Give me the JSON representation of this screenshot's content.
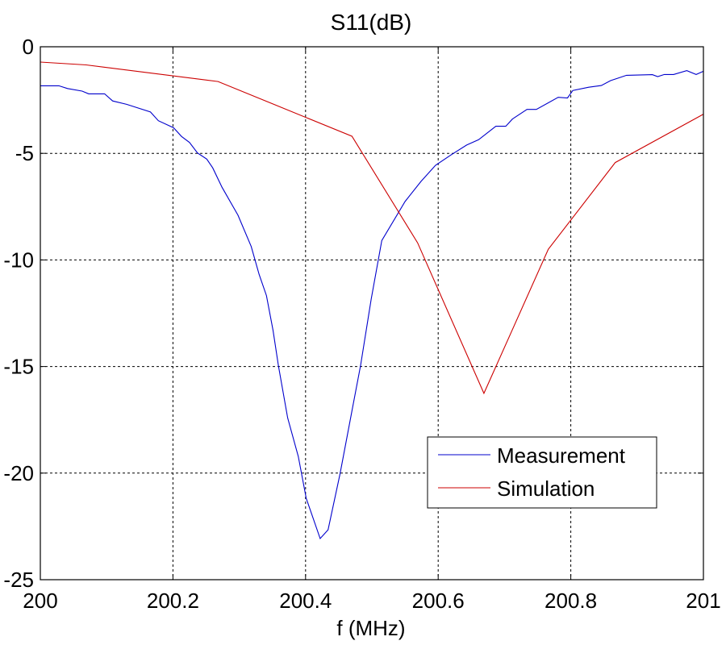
{
  "chart_data": {
    "type": "line",
    "title": "S11(dB)",
    "xlabel": "f (MHz)",
    "ylabel": "",
    "xlim": [
      200,
      201
    ],
    "ylim": [
      -25,
      0
    ],
    "xticks": [
      200,
      200.2,
      200.4,
      200.6,
      200.8,
      201
    ],
    "xtick_labels": [
      "200",
      "200.2",
      "200.4",
      "200.6",
      "200.8",
      "201"
    ],
    "yticks": [
      0,
      -5,
      -10,
      -15,
      -20,
      -25
    ],
    "ytick_labels": [
      "0",
      "-5",
      "-10",
      "-15",
      "-20",
      "-25"
    ],
    "grid": true,
    "legend_position": "lower-right",
    "series": [
      {
        "name": "Measurement",
        "color": "#0000cc",
        "x": [
          200.0,
          200.028,
          200.041,
          200.063,
          200.073,
          200.097,
          200.109,
          200.13,
          200.166,
          200.178,
          200.201,
          200.213,
          200.225,
          200.237,
          200.251,
          200.26,
          200.274,
          200.298,
          200.318,
          200.33,
          200.341,
          200.351,
          200.359,
          200.373,
          200.389,
          200.401,
          200.422,
          200.434,
          200.452,
          200.47,
          200.483,
          200.499,
          200.515,
          200.55,
          200.574,
          200.596,
          200.62,
          200.643,
          200.661,
          200.687,
          200.702,
          200.712,
          200.734,
          200.748,
          200.781,
          200.795,
          200.803,
          200.827,
          200.846,
          200.86,
          200.884,
          200.923,
          200.931,
          200.941,
          200.955,
          200.975,
          200.989,
          201.0
        ],
        "y": [
          -1.83,
          -1.83,
          -1.96,
          -2.08,
          -2.21,
          -2.21,
          -2.54,
          -2.7,
          -3.06,
          -3.47,
          -3.8,
          -4.21,
          -4.49,
          -4.98,
          -5.27,
          -5.68,
          -6.59,
          -7.9,
          -9.37,
          -10.69,
          -11.67,
          -13.31,
          -14.95,
          -17.41,
          -19.22,
          -21.18,
          -23.07,
          -22.66,
          -20.04,
          -17.08,
          -14.95,
          -11.83,
          -9.09,
          -7.26,
          -6.32,
          -5.56,
          -5.06,
          -4.61,
          -4.36,
          -3.73,
          -3.73,
          -3.39,
          -2.94,
          -2.94,
          -2.37,
          -2.4,
          -2.05,
          -1.9,
          -1.82,
          -1.59,
          -1.34,
          -1.31,
          -1.4,
          -1.3,
          -1.3,
          -1.12,
          -1.3,
          -1.15
        ]
      },
      {
        "name": "Simulation",
        "color": "#cc0000",
        "x": [
          200.0,
          200.069,
          200.268,
          200.47,
          200.569,
          200.669,
          200.766,
          200.867,
          201.0
        ],
        "y": [
          -0.72,
          -0.85,
          -1.63,
          -4.2,
          -9.2,
          -16.26,
          -9.5,
          -5.43,
          -3.16
        ]
      }
    ]
  }
}
